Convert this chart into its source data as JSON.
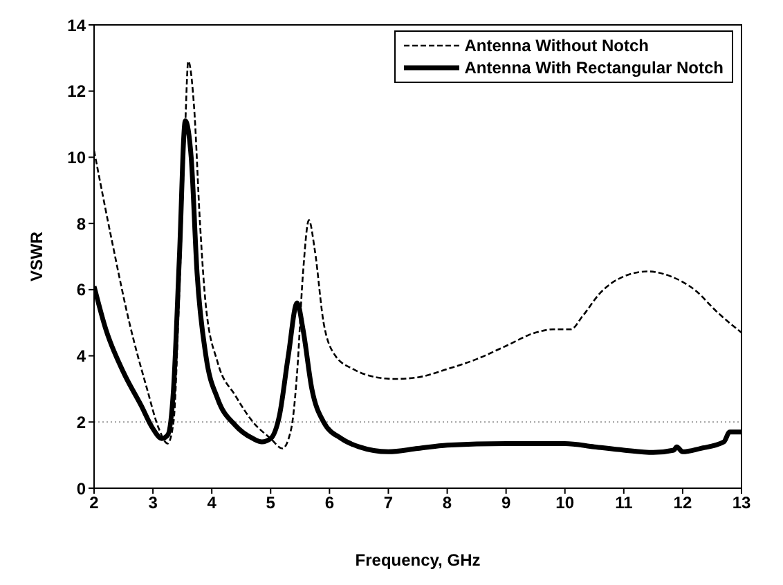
{
  "chart_data": {
    "type": "line",
    "xlabel": "Frequency, GHz",
    "ylabel": "VSWR",
    "xlim": [
      2,
      13
    ],
    "xticks": [
      2,
      3,
      4,
      5,
      6,
      7,
      8,
      9,
      10,
      11,
      12,
      13
    ],
    "ylim": [
      0,
      14
    ],
    "yticks": [
      0,
      2,
      4,
      6,
      8,
      10,
      12,
      14
    ],
    "grid": false,
    "legend": "top right",
    "marker": "none",
    "ref_lines": [
      {
        "axis": "y",
        "value": 2,
        "color": "#999999",
        "line_style": "dotted"
      }
    ],
    "series": [
      {
        "name": "Antenna Without Notch",
        "color": "#000000",
        "line_style": "dashed",
        "x": [
          2,
          2.3,
          2.6,
          2.9,
          3.1,
          3.25,
          3.35,
          3.45,
          3.55,
          3.6,
          3.7,
          3.8,
          3.9,
          4.1,
          4.4,
          4.7,
          5.0,
          5.2,
          5.35,
          5.45,
          5.55,
          5.65,
          5.75,
          5.9,
          6.1,
          6.4,
          6.8,
          7.1,
          7.5,
          8,
          8.5,
          9,
          9.5,
          9.8,
          10.1,
          10.3,
          10.6,
          11,
          11.4,
          11.8,
          12.2,
          12.6,
          13
        ],
        "values": [
          10.2,
          7.5,
          5,
          3,
          1.8,
          1.35,
          2,
          6,
          11,
          12.9,
          11.5,
          8,
          5.5,
          3.8,
          2.8,
          2,
          1.5,
          1.2,
          1.8,
          3.5,
          6.5,
          8.1,
          7.2,
          5,
          4,
          3.6,
          3.35,
          3.3,
          3.35,
          3.6,
          3.9,
          4.3,
          4.7,
          4.8,
          4.8,
          5.2,
          5.9,
          6.4,
          6.55,
          6.4,
          6,
          5.3,
          4.7
        ]
      },
      {
        "name": "Antenna With Rectangular Notch",
        "color": "#000000",
        "line_style": "solid",
        "x": [
          2,
          2.2,
          2.5,
          2.8,
          3.0,
          3.15,
          3.25,
          3.35,
          3.45,
          3.55,
          3.65,
          3.75,
          3.9,
          4.1,
          4.4,
          4.7,
          4.85,
          5.0,
          5.15,
          5.3,
          5.45,
          5.55,
          5.7,
          5.9,
          6.2,
          6.5,
          7,
          7.5,
          8,
          9,
          10,
          10.5,
          11,
          11.5,
          11.85,
          11.9,
          12,
          12.3,
          12.7,
          12.8,
          13
        ],
        "values": [
          6.1,
          4.8,
          3.5,
          2.5,
          1.8,
          1.5,
          1.6,
          3,
          7,
          11.1,
          10,
          6.5,
          4,
          2.7,
          1.9,
          1.5,
          1.4,
          1.5,
          2.2,
          4,
          5.6,
          4.8,
          3,
          2,
          1.5,
          1.25,
          1.1,
          1.2,
          1.3,
          1.35,
          1.35,
          1.25,
          1.15,
          1.08,
          1.15,
          1.25,
          1.1,
          1.2,
          1.4,
          1.7,
          1.7
        ]
      }
    ]
  }
}
